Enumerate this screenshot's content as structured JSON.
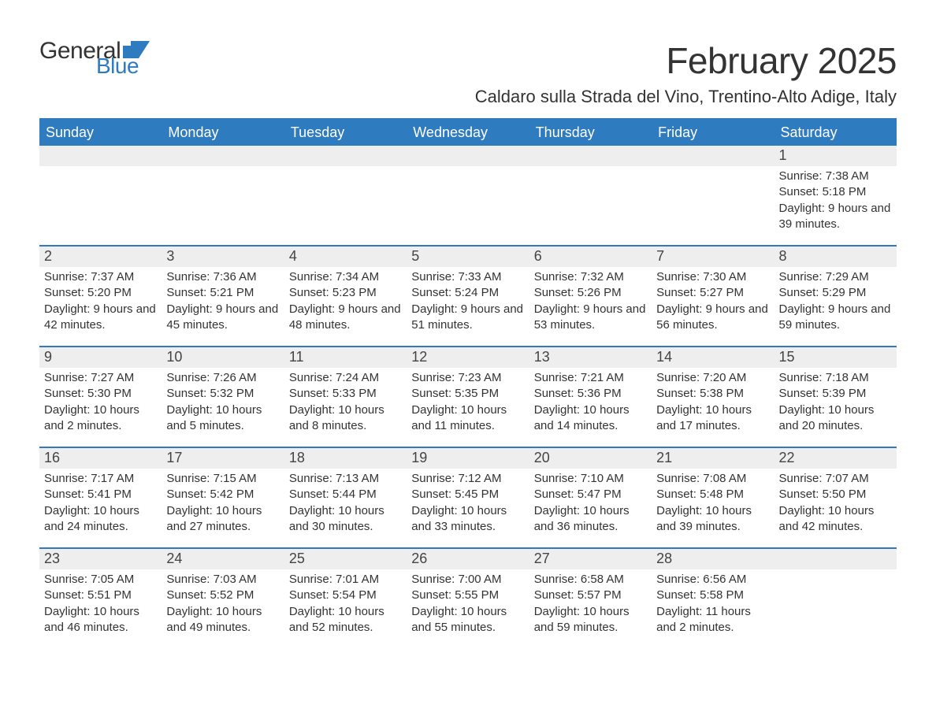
{
  "brand": {
    "word1": "General",
    "word2": "Blue",
    "flag_color": "#2f7bbf"
  },
  "title": "February 2025",
  "location": "Caldaro sulla Strada del Vino, Trentino-Alto Adige, Italy",
  "colors": {
    "header_bg": "#2f7bbf",
    "header_text": "#ffffff",
    "strip_bg": "#eeeeee",
    "page_bg": "#ffffff",
    "text": "#333333"
  },
  "day_names": [
    "Sunday",
    "Monday",
    "Tuesday",
    "Wednesday",
    "Thursday",
    "Friday",
    "Saturday"
  ],
  "weeks": [
    [
      {
        "date": "",
        "sunrise": "",
        "sunset": "",
        "daylight": ""
      },
      {
        "date": "",
        "sunrise": "",
        "sunset": "",
        "daylight": ""
      },
      {
        "date": "",
        "sunrise": "",
        "sunset": "",
        "daylight": ""
      },
      {
        "date": "",
        "sunrise": "",
        "sunset": "",
        "daylight": ""
      },
      {
        "date": "",
        "sunrise": "",
        "sunset": "",
        "daylight": ""
      },
      {
        "date": "",
        "sunrise": "",
        "sunset": "",
        "daylight": ""
      },
      {
        "date": "1",
        "sunrise": "Sunrise: 7:38 AM",
        "sunset": "Sunset: 5:18 PM",
        "daylight": "Daylight: 9 hours and 39 minutes."
      }
    ],
    [
      {
        "date": "2",
        "sunrise": "Sunrise: 7:37 AM",
        "sunset": "Sunset: 5:20 PM",
        "daylight": "Daylight: 9 hours and 42 minutes."
      },
      {
        "date": "3",
        "sunrise": "Sunrise: 7:36 AM",
        "sunset": "Sunset: 5:21 PM",
        "daylight": "Daylight: 9 hours and 45 minutes."
      },
      {
        "date": "4",
        "sunrise": "Sunrise: 7:34 AM",
        "sunset": "Sunset: 5:23 PM",
        "daylight": "Daylight: 9 hours and 48 minutes."
      },
      {
        "date": "5",
        "sunrise": "Sunrise: 7:33 AM",
        "sunset": "Sunset: 5:24 PM",
        "daylight": "Daylight: 9 hours and 51 minutes."
      },
      {
        "date": "6",
        "sunrise": "Sunrise: 7:32 AM",
        "sunset": "Sunset: 5:26 PM",
        "daylight": "Daylight: 9 hours and 53 minutes."
      },
      {
        "date": "7",
        "sunrise": "Sunrise: 7:30 AM",
        "sunset": "Sunset: 5:27 PM",
        "daylight": "Daylight: 9 hours and 56 minutes."
      },
      {
        "date": "8",
        "sunrise": "Sunrise: 7:29 AM",
        "sunset": "Sunset: 5:29 PM",
        "daylight": "Daylight: 9 hours and 59 minutes."
      }
    ],
    [
      {
        "date": "9",
        "sunrise": "Sunrise: 7:27 AM",
        "sunset": "Sunset: 5:30 PM",
        "daylight": "Daylight: 10 hours and 2 minutes."
      },
      {
        "date": "10",
        "sunrise": "Sunrise: 7:26 AM",
        "sunset": "Sunset: 5:32 PM",
        "daylight": "Daylight: 10 hours and 5 minutes."
      },
      {
        "date": "11",
        "sunrise": "Sunrise: 7:24 AM",
        "sunset": "Sunset: 5:33 PM",
        "daylight": "Daylight: 10 hours and 8 minutes."
      },
      {
        "date": "12",
        "sunrise": "Sunrise: 7:23 AM",
        "sunset": "Sunset: 5:35 PM",
        "daylight": "Daylight: 10 hours and 11 minutes."
      },
      {
        "date": "13",
        "sunrise": "Sunrise: 7:21 AM",
        "sunset": "Sunset: 5:36 PM",
        "daylight": "Daylight: 10 hours and 14 minutes."
      },
      {
        "date": "14",
        "sunrise": "Sunrise: 7:20 AM",
        "sunset": "Sunset: 5:38 PM",
        "daylight": "Daylight: 10 hours and 17 minutes."
      },
      {
        "date": "15",
        "sunrise": "Sunrise: 7:18 AM",
        "sunset": "Sunset: 5:39 PM",
        "daylight": "Daylight: 10 hours and 20 minutes."
      }
    ],
    [
      {
        "date": "16",
        "sunrise": "Sunrise: 7:17 AM",
        "sunset": "Sunset: 5:41 PM",
        "daylight": "Daylight: 10 hours and 24 minutes."
      },
      {
        "date": "17",
        "sunrise": "Sunrise: 7:15 AM",
        "sunset": "Sunset: 5:42 PM",
        "daylight": "Daylight: 10 hours and 27 minutes."
      },
      {
        "date": "18",
        "sunrise": "Sunrise: 7:13 AM",
        "sunset": "Sunset: 5:44 PM",
        "daylight": "Daylight: 10 hours and 30 minutes."
      },
      {
        "date": "19",
        "sunrise": "Sunrise: 7:12 AM",
        "sunset": "Sunset: 5:45 PM",
        "daylight": "Daylight: 10 hours and 33 minutes."
      },
      {
        "date": "20",
        "sunrise": "Sunrise: 7:10 AM",
        "sunset": "Sunset: 5:47 PM",
        "daylight": "Daylight: 10 hours and 36 minutes."
      },
      {
        "date": "21",
        "sunrise": "Sunrise: 7:08 AM",
        "sunset": "Sunset: 5:48 PM",
        "daylight": "Daylight: 10 hours and 39 minutes."
      },
      {
        "date": "22",
        "sunrise": "Sunrise: 7:07 AM",
        "sunset": "Sunset: 5:50 PM",
        "daylight": "Daylight: 10 hours and 42 minutes."
      }
    ],
    [
      {
        "date": "23",
        "sunrise": "Sunrise: 7:05 AM",
        "sunset": "Sunset: 5:51 PM",
        "daylight": "Daylight: 10 hours and 46 minutes."
      },
      {
        "date": "24",
        "sunrise": "Sunrise: 7:03 AM",
        "sunset": "Sunset: 5:52 PM",
        "daylight": "Daylight: 10 hours and 49 minutes."
      },
      {
        "date": "25",
        "sunrise": "Sunrise: 7:01 AM",
        "sunset": "Sunset: 5:54 PM",
        "daylight": "Daylight: 10 hours and 52 minutes."
      },
      {
        "date": "26",
        "sunrise": "Sunrise: 7:00 AM",
        "sunset": "Sunset: 5:55 PM",
        "daylight": "Daylight: 10 hours and 55 minutes."
      },
      {
        "date": "27",
        "sunrise": "Sunrise: 6:58 AM",
        "sunset": "Sunset: 5:57 PM",
        "daylight": "Daylight: 10 hours and 59 minutes."
      },
      {
        "date": "28",
        "sunrise": "Sunrise: 6:56 AM",
        "sunset": "Sunset: 5:58 PM",
        "daylight": "Daylight: 11 hours and 2 minutes."
      },
      {
        "date": "",
        "sunrise": "",
        "sunset": "",
        "daylight": ""
      }
    ]
  ]
}
